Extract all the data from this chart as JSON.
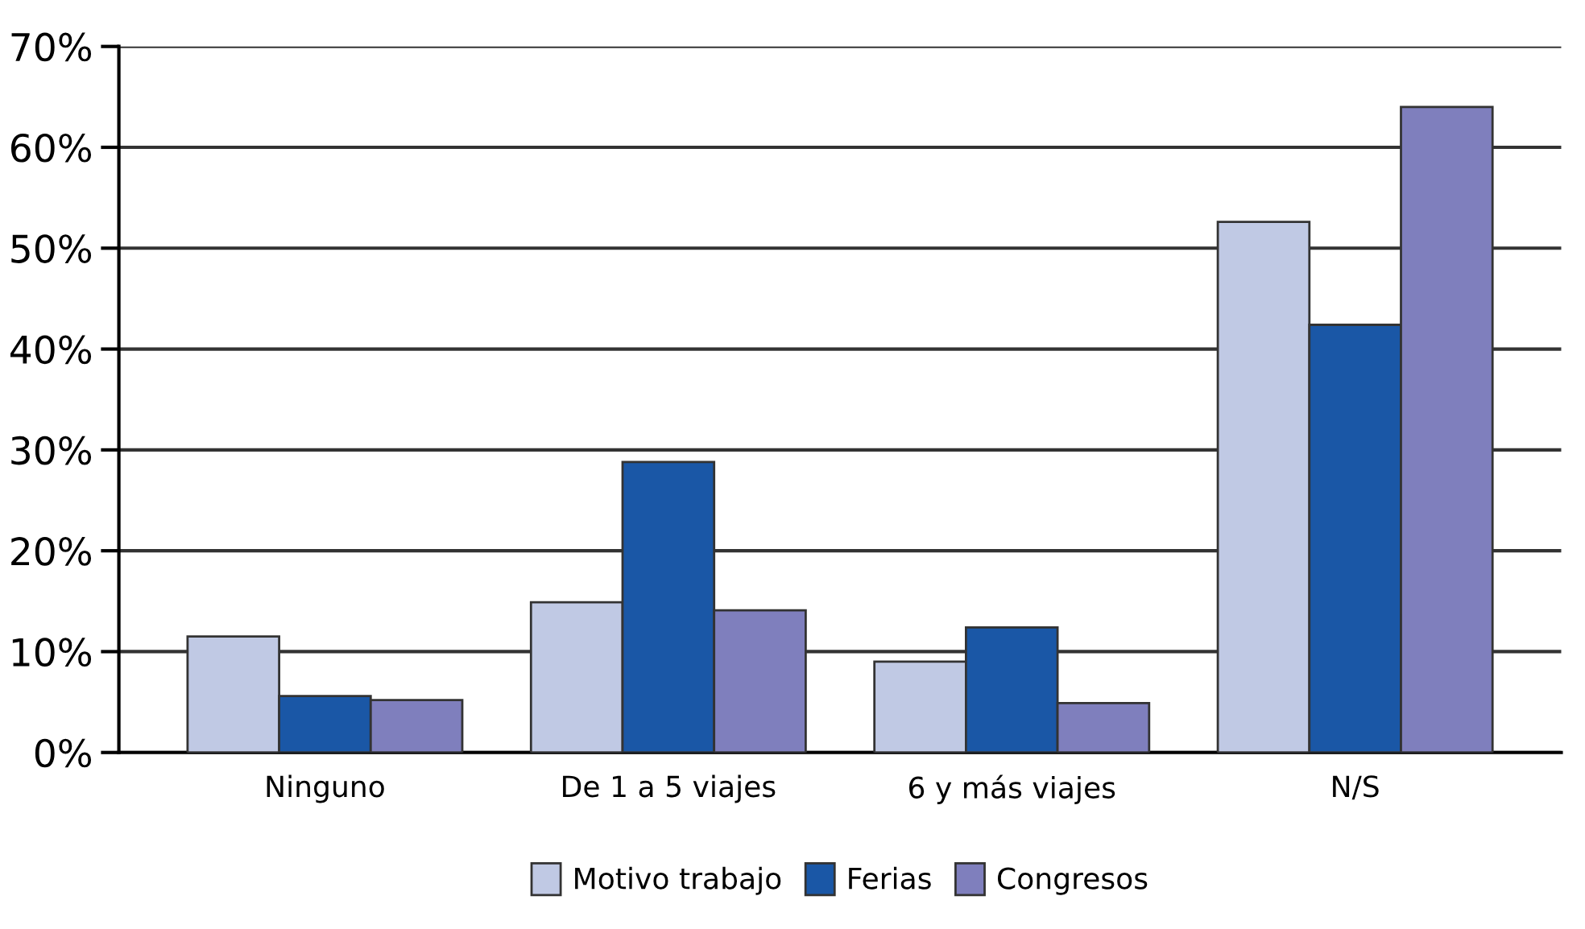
{
  "chart_data": {
    "type": "bar",
    "categories": [
      "Ninguno",
      "De 1 a 5 viajes",
      "6 y más viajes",
      "N/S"
    ],
    "series": [
      {
        "name": "Motivo trabajo",
        "color": "#c0c9e4",
        "values": [
          11.5,
          14.9,
          9.0,
          52.6
        ]
      },
      {
        "name": "Ferias",
        "color": "#1a57a6",
        "values": [
          5.6,
          28.8,
          12.4,
          42.4
        ]
      },
      {
        "name": "Congresos",
        "color": "#7f7fbd",
        "values": [
          5.2,
          14.1,
          4.9,
          64.0
        ]
      }
    ],
    "ylim": [
      0,
      70
    ],
    "yticks": [
      {
        "value": 0,
        "label": "0%"
      },
      {
        "value": 10,
        "label": "10%"
      },
      {
        "value": 20,
        "label": "20%"
      },
      {
        "value": 30,
        "label": "30%"
      },
      {
        "value": 40,
        "label": "40%"
      },
      {
        "value": 50,
        "label": "50%"
      },
      {
        "value": 60,
        "label": "60%"
      },
      {
        "value": 70,
        "label": "70%"
      }
    ],
    "grid": "y",
    "legend": "bottom"
  }
}
